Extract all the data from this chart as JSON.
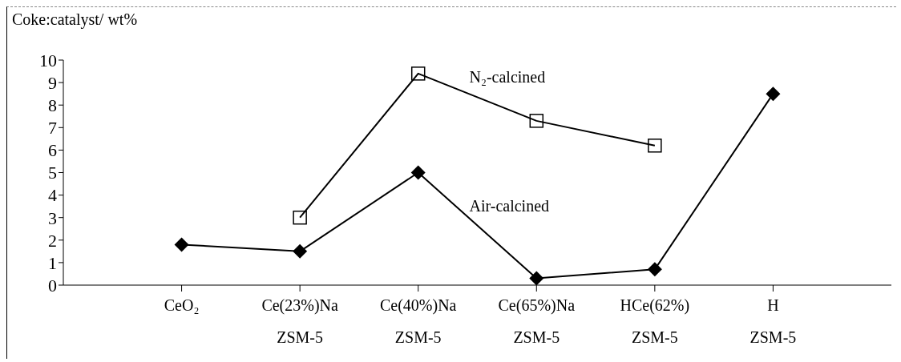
{
  "chart_data": {
    "type": "line",
    "ylabel": "Coke:catalyst/ wt%",
    "categories": [
      "CeO₂",
      "Ce(23%)Na\nZSM-5",
      "Ce(40%)Na\nZSM-5",
      "Ce(65%)Na\nZSM-5",
      "HCe(62%)\nZSM-5",
      "H\nZSM-5"
    ],
    "series": [
      {
        "name": "N₂-calcined",
        "color": "#000000",
        "marker": "square",
        "values": [
          null,
          3.0,
          9.4,
          7.3,
          6.2,
          null
        ]
      },
      {
        "name": "Air-calcined",
        "color": "#000000",
        "marker": "diamond",
        "values": [
          1.8,
          1.5,
          5.0,
          0.3,
          0.7,
          8.5
        ]
      }
    ],
    "ylim": [
      0,
      10
    ],
    "yticks": [
      0,
      1,
      2,
      3,
      4,
      5,
      6,
      7,
      8,
      9,
      10
    ],
    "grid": false,
    "legend": false
  }
}
